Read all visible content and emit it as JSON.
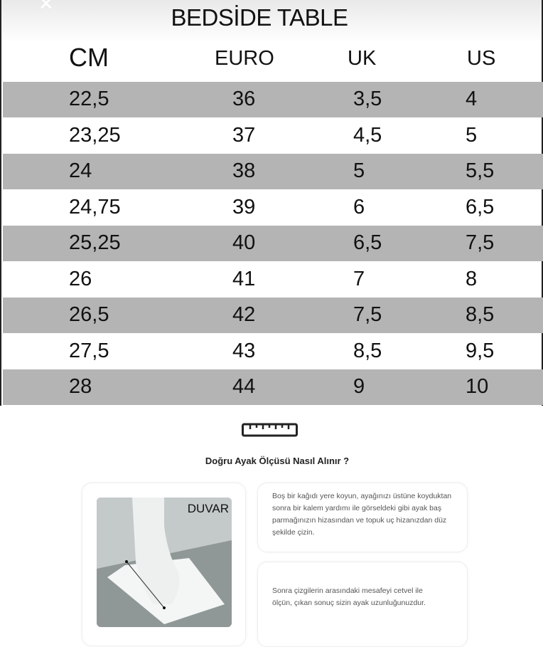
{
  "title": "BEDSİDE TABLE",
  "headers": [
    "CM",
    "EURO",
    "UK",
    "US"
  ],
  "rows": [
    [
      "22,5",
      "36",
      "3,5",
      "4"
    ],
    [
      "23,25",
      "37",
      "4,5",
      "5"
    ],
    [
      "24",
      "38",
      "5",
      "5,5"
    ],
    [
      "24,75",
      "39",
      "6",
      "6,5"
    ],
    [
      "25,25",
      "40",
      "6,5",
      "7,5"
    ],
    [
      "26",
      "41",
      "7",
      "8"
    ],
    [
      "26,5",
      "42",
      "7,5",
      "8,5"
    ],
    [
      "27,5",
      "43",
      "8,5",
      "9,5"
    ],
    [
      "28",
      "44",
      "9",
      "10"
    ]
  ],
  "colors": {
    "stripe": "#b4b4b4"
  },
  "guide": {
    "heading": "Doğru Ayak Ölçüsü Nasıl Alınır ?",
    "image_label": "DUVAR",
    "step1": "Boş bir kağıdı yere koyun, ayağınızı üstüne koyduktan sonra bir kalem yardımı ile görseldeki gibi ayak baş parmağınızın hizasından ve topuk uç hizanızdan düz şekilde çizin.",
    "step2": "Sonra çizgilerin arasındaki mesafeyi cetvel ile ölçün, çıkan sonuç sizin ayak uzunluğunuzdur."
  }
}
